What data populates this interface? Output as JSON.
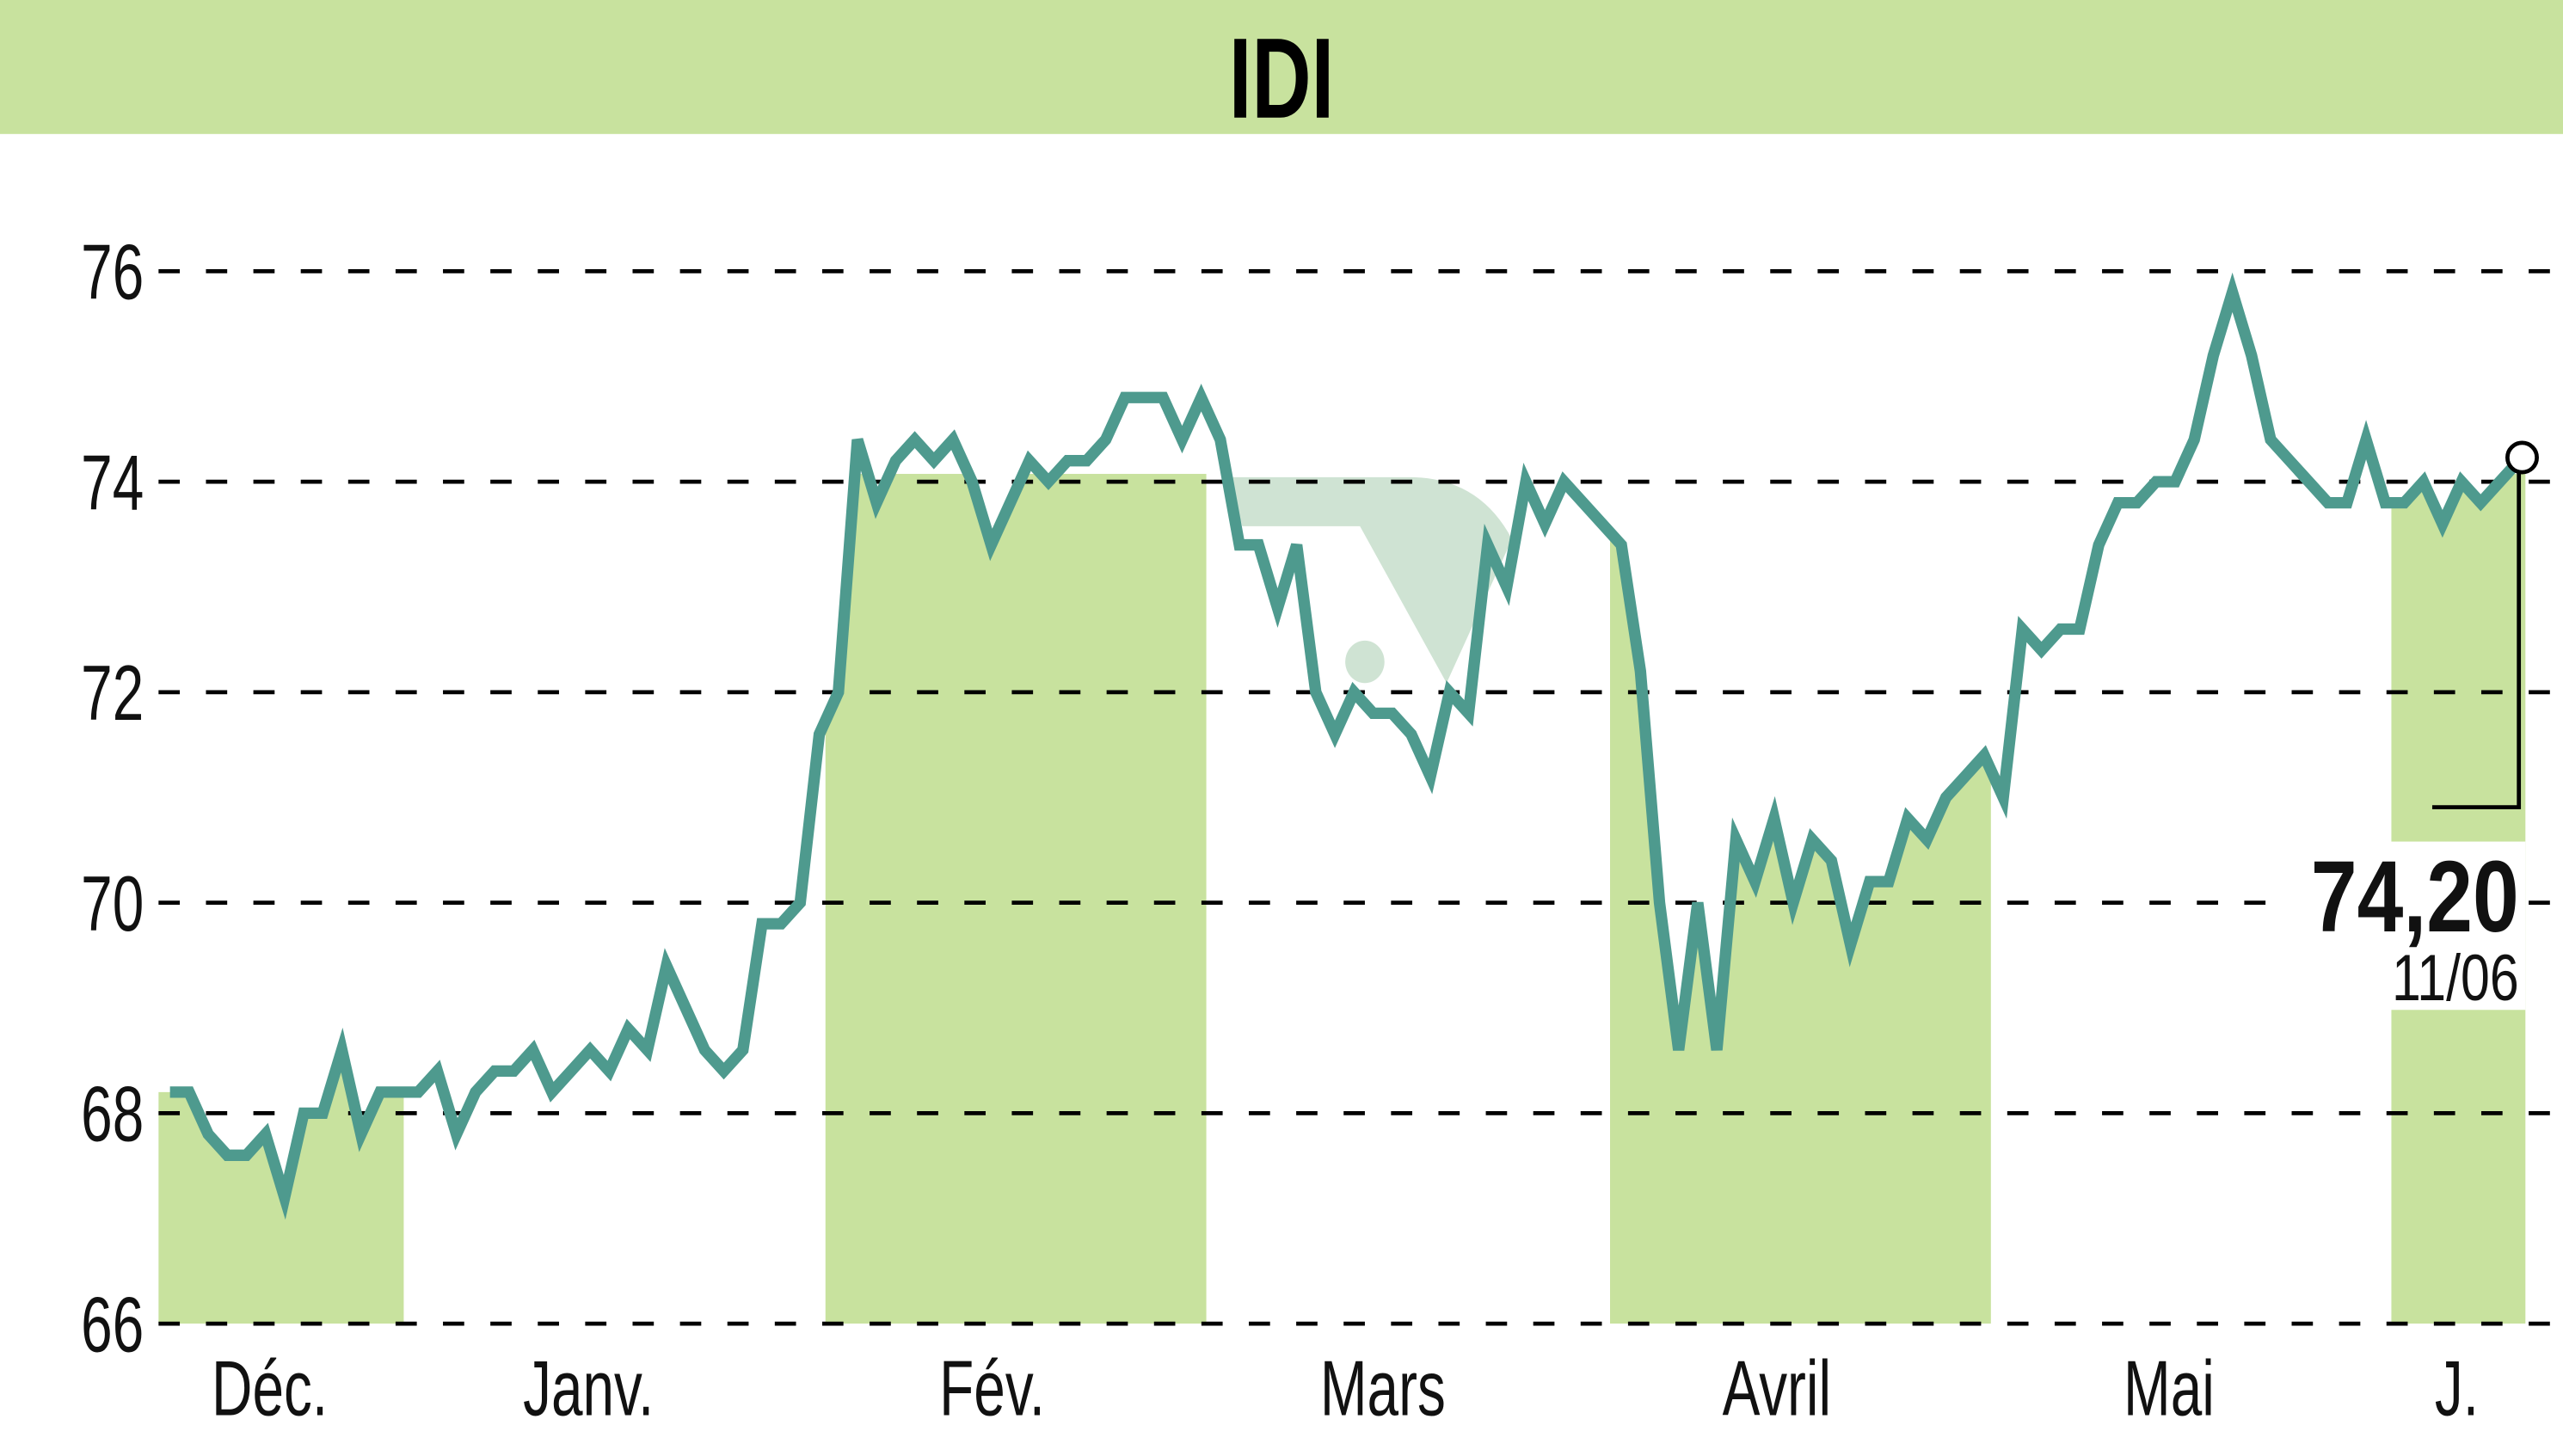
{
  "header": {
    "title": "IDI",
    "background_color": "#c8e29e"
  },
  "colors": {
    "band": "#c8e29e",
    "line": "#4e9a8e",
    "grid": "#000000",
    "watermark": "#cfe3d3"
  },
  "last_price": {
    "value_label": "74,20",
    "date_label": "11/06"
  },
  "chart_data": {
    "type": "line",
    "title": "IDI",
    "xlabel": "",
    "ylabel": "",
    "ylim": [
      66,
      76
    ],
    "yticks": [
      66,
      68,
      70,
      72,
      74,
      76
    ],
    "ytick_labels": [
      "66",
      "68",
      "70",
      "72",
      "74",
      "76"
    ],
    "grid": true,
    "grid_style": "dashed horizontal",
    "legend": null,
    "x_month_labels": [
      "Déc.",
      "Janv.",
      "Fév.",
      "Mars",
      "Avril",
      "Mai",
      "J."
    ],
    "shaded_months": [
      "Déc.",
      "Fév.",
      "Avril",
      "J."
    ],
    "series": [
      {
        "name": "IDI",
        "values": [
          68.2,
          68.2,
          67.8,
          67.6,
          67.6,
          67.8,
          67.2,
          68.0,
          68.0,
          68.6,
          67.8,
          68.2,
          68.2,
          68.2,
          68.4,
          67.8,
          68.2,
          68.4,
          68.4,
          68.6,
          68.2,
          68.4,
          68.6,
          68.4,
          68.8,
          68.6,
          69.4,
          69.0,
          68.6,
          68.4,
          68.6,
          69.8,
          69.8,
          70.0,
          71.6,
          72.0,
          74.4,
          73.8,
          74.2,
          74.4,
          74.2,
          74.4,
          74.0,
          73.4,
          73.8,
          74.2,
          74.0,
          74.2,
          74.2,
          74.4,
          74.8,
          74.8,
          74.8,
          74.4,
          74.8,
          74.4,
          73.4,
          73.4,
          72.8,
          73.4,
          72.0,
          71.6,
          72.0,
          71.8,
          71.8,
          71.6,
          71.2,
          72.0,
          71.8,
          73.4,
          73.0,
          74.0,
          73.6,
          74.0,
          73.8,
          73.6,
          73.4,
          72.2,
          70.0,
          68.6,
          70.0,
          68.6,
          70.6,
          70.2,
          70.8,
          70.0,
          70.6,
          70.4,
          69.6,
          70.2,
          70.2,
          70.8,
          70.6,
          71.0,
          71.2,
          71.4,
          71.0,
          72.6,
          72.4,
          72.6,
          72.6,
          73.4,
          73.8,
          73.8,
          74.0,
          74.0,
          74.4,
          75.2,
          75.8,
          75.2,
          74.4,
          74.2,
          74.0,
          73.8,
          73.8,
          74.4,
          73.8,
          73.8,
          74.0,
          73.6,
          74.0,
          73.8,
          74.0,
          74.2
        ]
      }
    ],
    "annotations": [
      {
        "text": "74,20",
        "role": "last value"
      },
      {
        "text": "11/06",
        "role": "last date"
      }
    ]
  }
}
